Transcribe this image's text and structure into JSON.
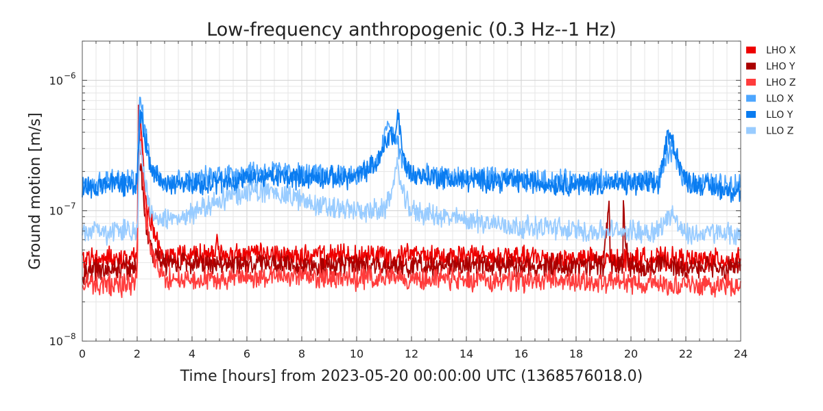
{
  "chart_data": {
    "type": "line",
    "title": "Low-frequency anthropogenic (0.3 Hz--1 Hz)",
    "xlabel": "Time [hours] from 2023-05-20 00:00:00 UTC (1368576018.0)",
    "ylabel": "Ground motion [m/s]",
    "xlim": [
      0,
      24
    ],
    "ylim": [
      1e-08,
      2e-06
    ],
    "yscale": "log",
    "grid": true,
    "legend_position": "right",
    "x_ticks": [
      "0",
      "2",
      "4",
      "6",
      "8",
      "10",
      "12",
      "14",
      "16",
      "18",
      "20",
      "22",
      "24"
    ],
    "y_ticks": [
      {
        "base": "10",
        "exp": "−8",
        "value": 1e-08
      },
      {
        "base": "10",
        "exp": "−7",
        "value": 1e-07
      },
      {
        "base": "10",
        "exp": "−6",
        "value": 1e-06
      }
    ],
    "series": [
      {
        "name": "LHO X",
        "color": "#ee0000",
        "x": [
          0,
          0.5,
          1,
          1.5,
          2,
          2.05,
          2.15,
          2.3,
          2.5,
          2.8,
          3,
          4,
          4.8,
          4.9,
          5,
          6,
          7,
          8,
          9,
          10,
          11,
          12,
          13,
          14,
          15,
          16,
          17,
          18,
          19,
          20,
          21,
          22,
          23,
          24
        ],
        "y": [
          4.2e-08,
          4.3e-08,
          4.4e-08,
          4.4e-08,
          4.5e-08,
          6.5e-07,
          4e-07,
          1.2e-07,
          8e-08,
          5e-08,
          4.5e-08,
          4.5e-08,
          4.6e-08,
          5.8e-08,
          4.6e-08,
          4.6e-08,
          4.6e-08,
          4.5e-08,
          4.5e-08,
          4.5e-08,
          4.6e-08,
          4.6e-08,
          4.5e-08,
          4.5e-08,
          4.4e-08,
          4.4e-08,
          4.3e-08,
          4.3e-08,
          4.2e-08,
          4.3e-08,
          4.3e-08,
          4.2e-08,
          4.2e-08,
          4.2e-08
        ]
      },
      {
        "name": "LHO Y",
        "color": "#aa0000",
        "x": [
          0,
          0.5,
          1,
          1.5,
          2,
          2.05,
          2.15,
          2.3,
          2.5,
          3,
          4,
          5,
          6,
          7,
          8,
          9,
          10,
          11,
          12,
          13,
          14,
          15,
          16,
          17,
          18,
          19,
          19.2,
          19.25,
          19.4,
          19.7,
          19.72,
          19.9,
          20,
          21,
          22,
          23,
          24
        ],
        "y": [
          3.2e-08,
          3.5e-08,
          3.6e-08,
          3.6e-08,
          3.7e-08,
          3e-07,
          2e-07,
          8e-08,
          5e-08,
          4e-08,
          4e-08,
          3.9e-08,
          3.9e-08,
          3.9e-08,
          3.8e-08,
          3.8e-08,
          3.8e-08,
          3.8e-08,
          3.8e-08,
          3.8e-08,
          3.8e-08,
          3.8e-08,
          3.8e-08,
          3.8e-08,
          3.8e-08,
          3.8e-08,
          1.2e-07,
          3.9e-08,
          3.8e-08,
          3.8e-08,
          1e-07,
          3.8e-08,
          3.8e-08,
          3.8e-08,
          3.7e-08,
          3.6e-08,
          3.6e-08
        ]
      },
      {
        "name": "LHO Z",
        "color": "#ff3c3c",
        "x": [
          0,
          0.5,
          1,
          1.5,
          2,
          2.05,
          2.15,
          2.3,
          2.5,
          2.8,
          3,
          4,
          5,
          6,
          7,
          8,
          9,
          10,
          11,
          12,
          13,
          14,
          15,
          16,
          17,
          18,
          19,
          20,
          21,
          22,
          23,
          24
        ],
        "y": [
          2.8e-08,
          2.7e-08,
          2.7e-08,
          2.7e-08,
          2.8e-08,
          4e-07,
          3e-07,
          1e-07,
          5e-08,
          3.5e-08,
          3e-08,
          2.9e-08,
          3e-08,
          3.1e-08,
          3.2e-08,
          3.1e-08,
          3.1e-08,
          3e-08,
          3.1e-08,
          3e-08,
          3e-08,
          2.9e-08,
          2.9e-08,
          2.9e-08,
          2.9e-08,
          2.9e-08,
          2.8e-08,
          2.8e-08,
          2.8e-08,
          2.7e-08,
          2.7e-08,
          2.7e-08
        ]
      },
      {
        "name": "LLO X",
        "color": "#4da6ff",
        "x": [
          0,
          0.5,
          1,
          1.5,
          2,
          2.1,
          2.2,
          2.4,
          2.6,
          3,
          4,
          5,
          6,
          7,
          8,
          9,
          10,
          10.8,
          11.1,
          11.3,
          11.5,
          11.7,
          12,
          13,
          14,
          15,
          16,
          17,
          18,
          19,
          20,
          21,
          21.3,
          21.5,
          21.7,
          22,
          23,
          24
        ],
        "y": [
          1.6e-07,
          1.6e-07,
          1.7e-07,
          1.7e-07,
          1.7e-07,
          7.5e-07,
          5.5e-07,
          3e-07,
          2e-07,
          1.7e-07,
          1.7e-07,
          1.9e-07,
          2e-07,
          2e-07,
          1.9e-07,
          1.9e-07,
          1.9e-07,
          2.3e-07,
          4.5e-07,
          4e-07,
          3.2e-07,
          2.3e-07,
          1.9e-07,
          1.8e-07,
          1.8e-07,
          1.8e-07,
          1.7e-07,
          1.7e-07,
          1.7e-07,
          1.7e-07,
          1.7e-07,
          1.7e-07,
          2.5e-07,
          3e-07,
          2.2e-07,
          1.7e-07,
          1.6e-07,
          1.6e-07
        ]
      },
      {
        "name": "LLO Y",
        "color": "#0a7cf0",
        "x": [
          0,
          0.5,
          1,
          1.5,
          2,
          2.1,
          2.2,
          2.4,
          2.6,
          3,
          4,
          5,
          6,
          7,
          8,
          9,
          10,
          10.8,
          11.2,
          11.4,
          11.5,
          11.7,
          12,
          13,
          14,
          15,
          16,
          17,
          18,
          19,
          20,
          21,
          21.35,
          21.55,
          21.8,
          22,
          23,
          24
        ],
        "y": [
          1.5e-07,
          1.5e-07,
          1.6e-07,
          1.6e-07,
          1.6e-07,
          6e-07,
          4.5e-07,
          2.7e-07,
          1.9e-07,
          1.6e-07,
          1.6e-07,
          1.6e-07,
          1.7e-07,
          1.8e-07,
          1.8e-07,
          1.8e-07,
          1.8e-07,
          2.4e-07,
          4e-07,
          3.5e-07,
          5.8e-07,
          2.5e-07,
          1.9e-07,
          1.8e-07,
          1.7e-07,
          1.7e-07,
          1.7e-07,
          1.6e-07,
          1.6e-07,
          1.6e-07,
          1.6e-07,
          1.6e-07,
          3.8e-07,
          3.3e-07,
          2.2e-07,
          1.7e-07,
          1.5e-07,
          1.4e-07
        ]
      },
      {
        "name": "LLO Z",
        "color": "#99ccff",
        "x": [
          0,
          0.5,
          1,
          1.5,
          2,
          2.1,
          2.2,
          2.4,
          2.6,
          3,
          4,
          5,
          6,
          7,
          8,
          9,
          10,
          11,
          11.3,
          11.5,
          11.7,
          12,
          13,
          14,
          15,
          16,
          17,
          18,
          19,
          20,
          21,
          21.5,
          21.7,
          22,
          23,
          24
        ],
        "y": [
          6.5e-08,
          7e-08,
          6.8e-08,
          7e-08,
          7e-08,
          3e-07,
          2.5e-07,
          1.2e-07,
          9e-08,
          8.5e-08,
          9.5e-08,
          1.2e-07,
          1.4e-07,
          1.4e-07,
          1.2e-07,
          1.05e-07,
          1e-07,
          1e-07,
          1.5e-07,
          2.2e-07,
          1.3e-07,
          1e-07,
          9e-08,
          8.5e-08,
          8e-08,
          7.5e-08,
          7.5e-08,
          7e-08,
          7e-08,
          7e-08,
          7e-08,
          1e-07,
          8e-08,
          6.5e-08,
          6.8e-08,
          6.5e-08
        ]
      }
    ]
  }
}
